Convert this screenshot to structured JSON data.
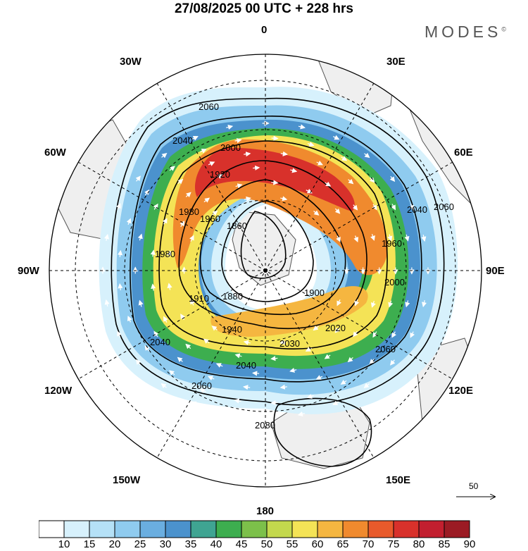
{
  "title": "27/08/2025  00 UTC  + 228 hrs",
  "brand": "MODES",
  "brand_mark": "©",
  "longitude_labels": {
    "lon_0": "0",
    "lon_30e": "30E",
    "lon_60e": "60E",
    "lon_90e": "90E",
    "lon_120e": "120E",
    "lon_150e": "150E",
    "lon_180": "180",
    "lon_150w": "150W",
    "lon_120w": "120W",
    "lon_90w": "90W",
    "lon_60w": "60W",
    "lon_30w": "30W"
  },
  "contour_labels": [
    "2060",
    "2040",
    "2000",
    "1920",
    "1980",
    "1960",
    "1860",
    "1980",
    "1910",
    "1880",
    "1900",
    "1940",
    "2020",
    "2030",
    "2040",
    "2060",
    "2060",
    "2040",
    "2080",
    "1960",
    "2000",
    "2040",
    "2060"
  ],
  "reference_vector": "50",
  "colorbar": {
    "ticks": [
      "10",
      "15",
      "20",
      "25",
      "30",
      "35",
      "40",
      "45",
      "50",
      "55",
      "60",
      "65",
      "70",
      "75",
      "80",
      "85",
      "90"
    ],
    "colors": [
      "#ffffff",
      "#d7f1fc",
      "#b5e1f7",
      "#8fcbef",
      "#6aaee0",
      "#4b92cd",
      "#3fa492",
      "#3dae4f",
      "#7cc04a",
      "#c3d84d",
      "#f4e356",
      "#f5b640",
      "#f08a2e",
      "#e85a2b",
      "#d8312b",
      "#c21f2f",
      "#9b1b24"
    ]
  },
  "colors": {
    "land": "#efefef",
    "coast": "#555555",
    "grid": "#000000",
    "contour": "#000000",
    "vector": "#ffffff"
  }
}
